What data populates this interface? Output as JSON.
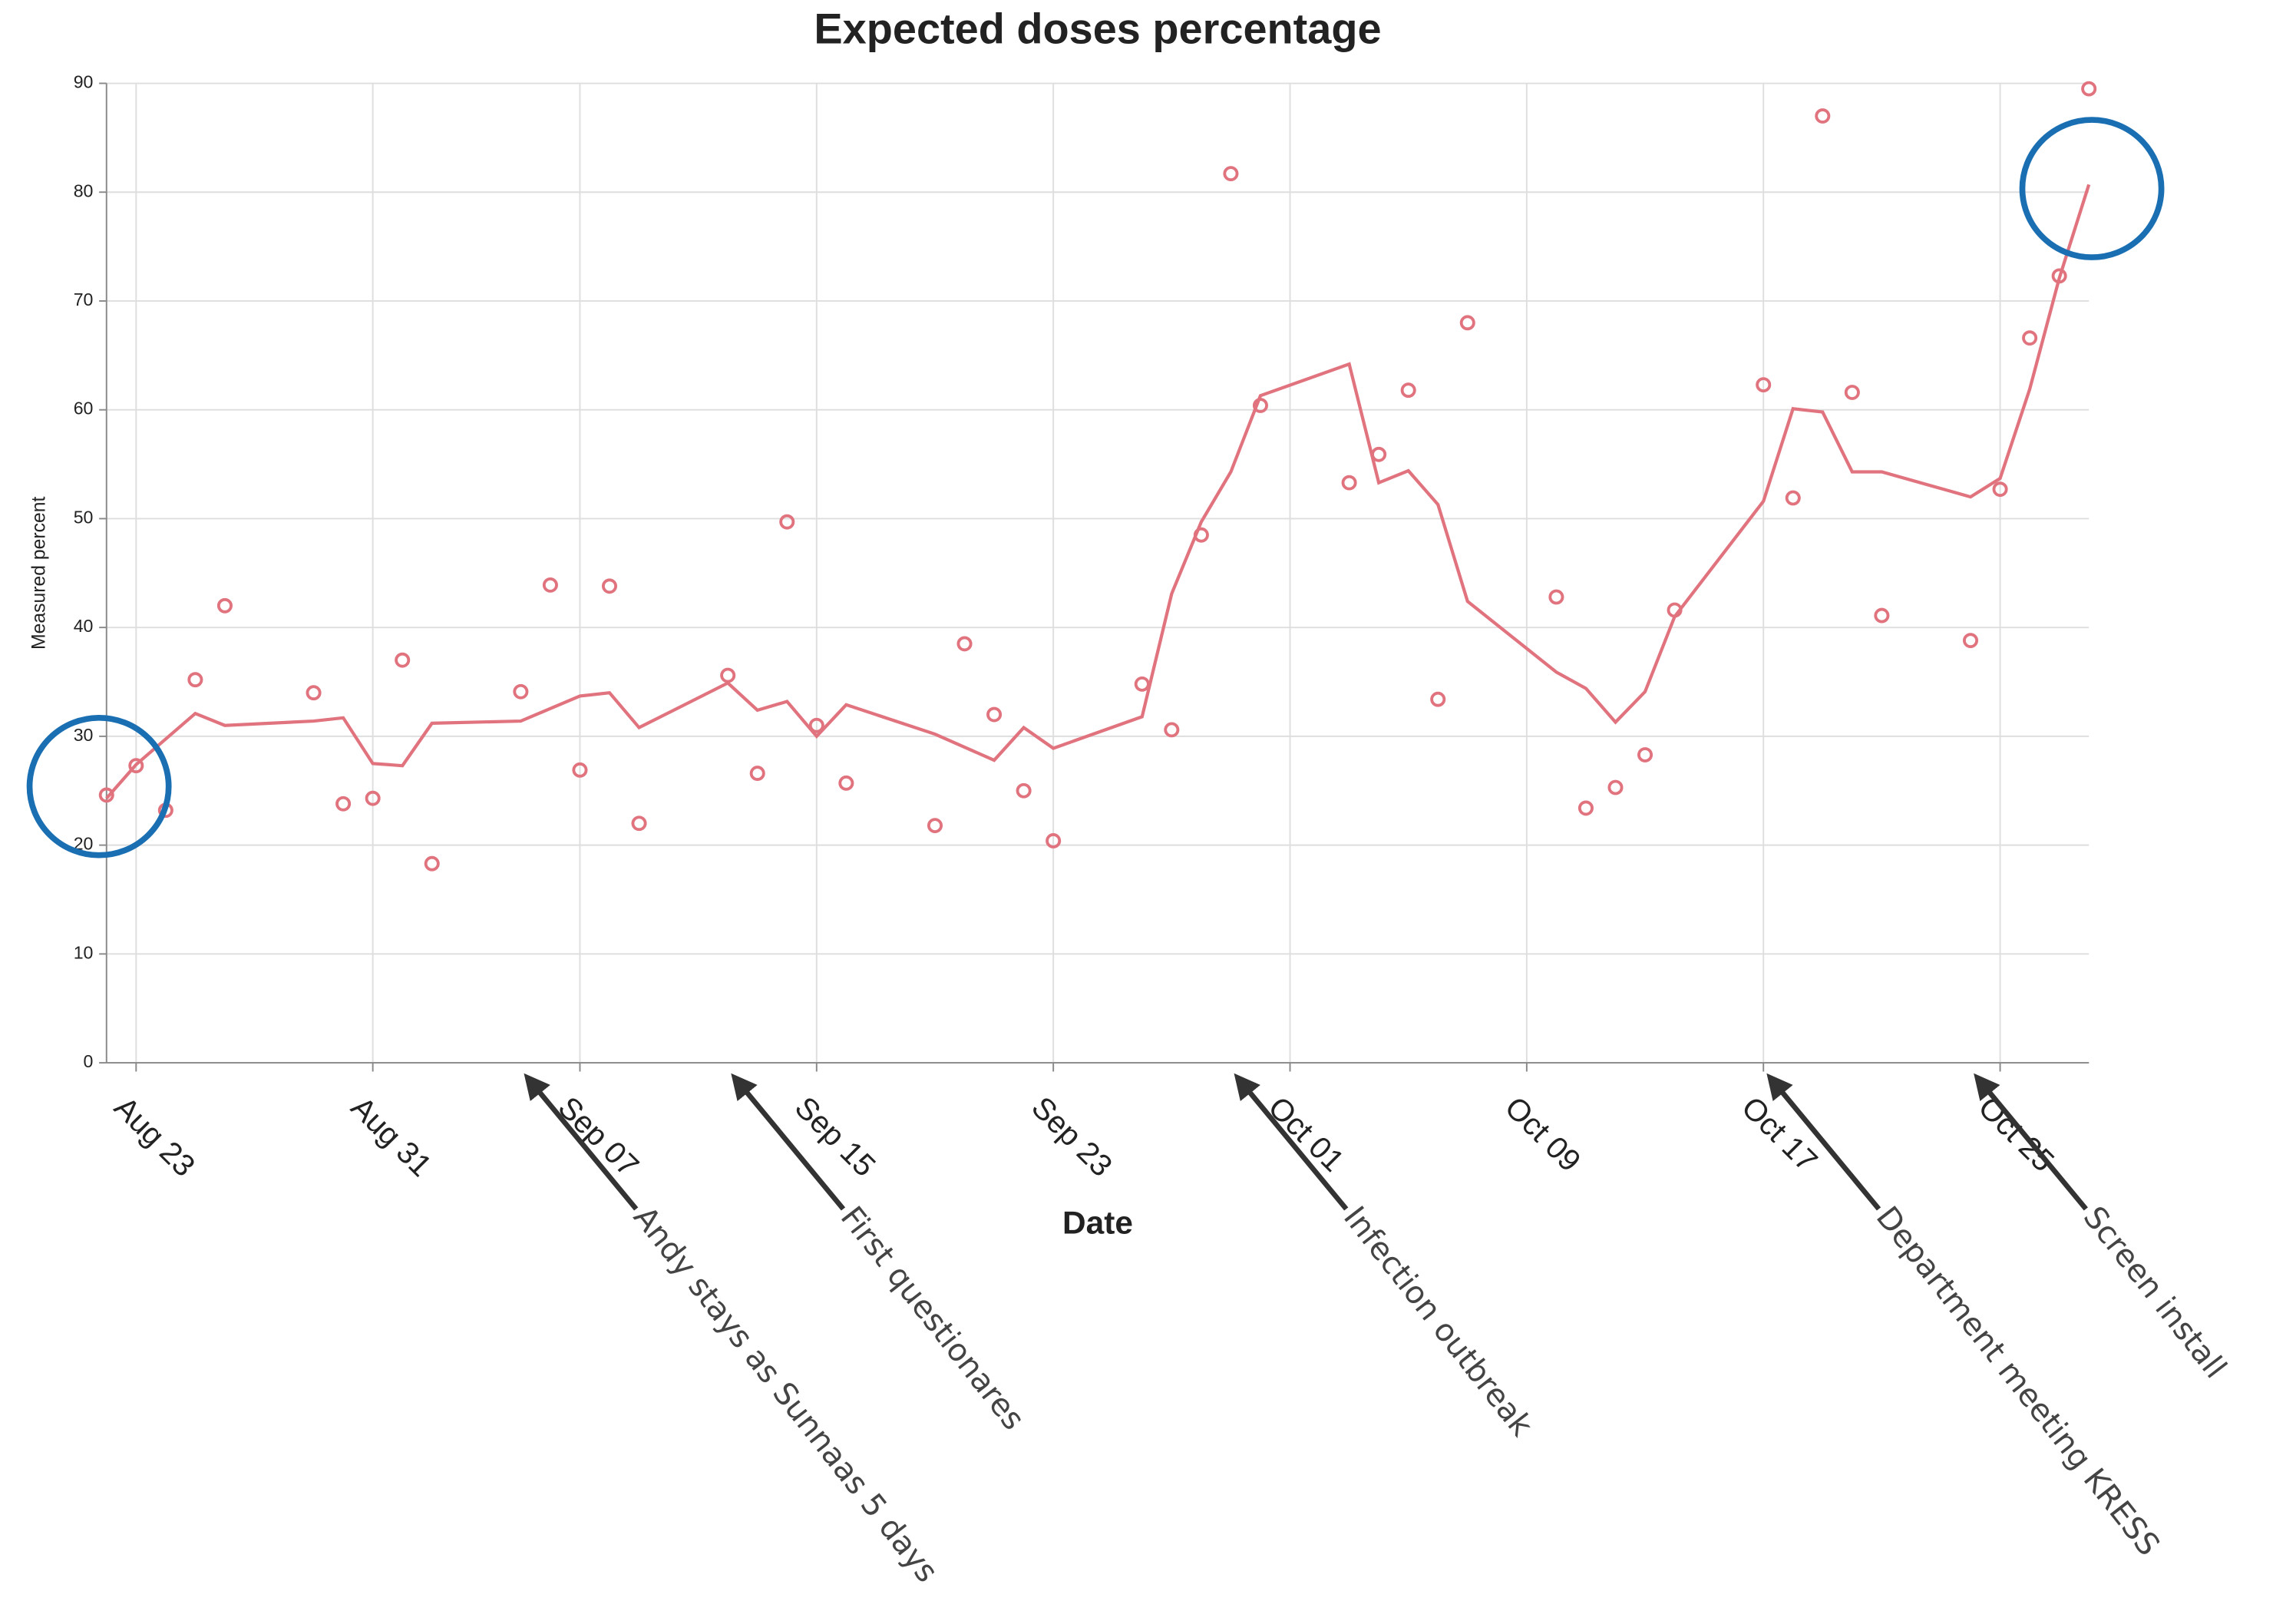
{
  "chart_data": {
    "type": "line",
    "title": "Expected doses percentage",
    "x_label": "Date",
    "y_label": "Measured percent",
    "xlim": [
      "Aug 22",
      "Oct 28"
    ],
    "xticks": [
      "Aug 23",
      "Aug 31",
      "Sep 07",
      "Sep 15",
      "Sep 23",
      "Oct 01",
      "Oct 09",
      "Oct 17",
      "Oct 25"
    ],
    "ylim": [
      0,
      90
    ],
    "yticks": [
      0,
      10,
      20,
      30,
      40,
      50,
      60,
      70,
      80,
      90
    ],
    "grid": true,
    "series": [
      {
        "type": "scatter",
        "color": "#e0737e",
        "x": [
          "Aug 22",
          "Aug 23",
          "Aug 24",
          "Aug 25",
          "Aug 26",
          "Aug 29",
          "Aug 30",
          "Aug 31",
          "Sep 01",
          "Sep 02",
          "Sep 05",
          "Sep 06",
          "Sep 07",
          "Sep 08",
          "Sep 09",
          "Sep 12",
          "Sep 13",
          "Sep 14",
          "Sep 15",
          "Sep 16",
          "Sep 19",
          "Sep 20",
          "Sep 21",
          "Sep 22",
          "Sep 23",
          "Sep 26",
          "Sep 27",
          "Sep 28",
          "Sep 29",
          "Sep 30",
          "Oct 03",
          "Oct 04",
          "Oct 05",
          "Oct 06",
          "Oct 07",
          "Oct 10",
          "Oct 11",
          "Oct 12",
          "Oct 13",
          "Oct 14",
          "Oct 17",
          "Oct 18",
          "Oct 19",
          "Oct 20",
          "Oct 21",
          "Oct 24",
          "Oct 25",
          "Oct 26",
          "Oct 27",
          "Oct 28"
        ],
        "values": [
          24.6,
          27.3,
          23.2,
          35.2,
          42.0,
          34.0,
          23.8,
          24.3,
          37.0,
          18.3,
          34.1,
          43.9,
          26.9,
          43.8,
          22.0,
          35.6,
          26.6,
          49.7,
          31.0,
          25.7,
          21.8,
          38.5,
          32.0,
          25.0,
          20.4,
          34.8,
          30.6,
          48.5,
          81.7,
          60.4,
          53.3,
          55.9,
          61.8,
          33.4,
          68.0,
          42.8,
          23.4,
          25.3,
          28.3,
          41.6,
          62.3,
          51.9,
          87.0,
          61.6,
          41.1,
          38.8,
          52.7,
          66.6,
          72.3,
          89.5
        ]
      },
      {
        "type": "line",
        "color": "#e0737e",
        "x": [
          "Aug 22",
          "Aug 23",
          "Aug 25",
          "Aug 26",
          "Aug 29",
          "Aug 30",
          "Aug 31",
          "Sep 01",
          "Sep 02",
          "Sep 05",
          "Sep 07",
          "Sep 08",
          "Sep 09",
          "Sep 12",
          "Sep 13",
          "Sep 14",
          "Sep 15",
          "Sep 16",
          "Sep 19",
          "Sep 21",
          "Sep 22",
          "Sep 23",
          "Sep 26",
          "Sep 27",
          "Sep 28",
          "Sep 29",
          "Sep 30",
          "Oct 03",
          "Oct 04",
          "Oct 05",
          "Oct 06",
          "Oct 07",
          "Oct 10",
          "Oct 11",
          "Oct 12",
          "Oct 13",
          "Oct 14",
          "Oct 17",
          "Oct 18",
          "Oct 19",
          "Oct 20",
          "Oct 21",
          "Oct 24",
          "Oct 25",
          "Oct 26",
          "Oct 27",
          "Oct 28"
        ],
        "values": [
          24.3,
          27.4,
          32.1,
          31.0,
          31.4,
          31.7,
          27.5,
          27.3,
          31.2,
          31.4,
          33.7,
          34.0,
          30.8,
          34.9,
          32.4,
          33.2,
          30.0,
          32.9,
          30.2,
          27.8,
          30.8,
          28.9,
          31.8,
          43.1,
          49.7,
          54.3,
          61.3,
          64.2,
          53.3,
          54.4,
          51.3,
          42.4,
          35.9,
          34.4,
          31.3,
          34.1,
          41.0,
          51.6,
          60.1,
          59.8,
          54.3,
          54.3,
          52.0,
          53.7,
          61.9,
          72.1,
          80.7
        ]
      }
    ],
    "annotations": [
      {
        "x": "Sep 05",
        "text": "Andy stays as Sunnaas 5 days"
      },
      {
        "x": "Sep 12",
        "text": "First questionares"
      },
      {
        "x": "Sep 29",
        "text": "Infection outbreak"
      },
      {
        "x": "Oct 17",
        "text": "Department meeting KRESS"
      },
      {
        "x": "Oct 24",
        "text": "Screen install"
      }
    ]
  }
}
